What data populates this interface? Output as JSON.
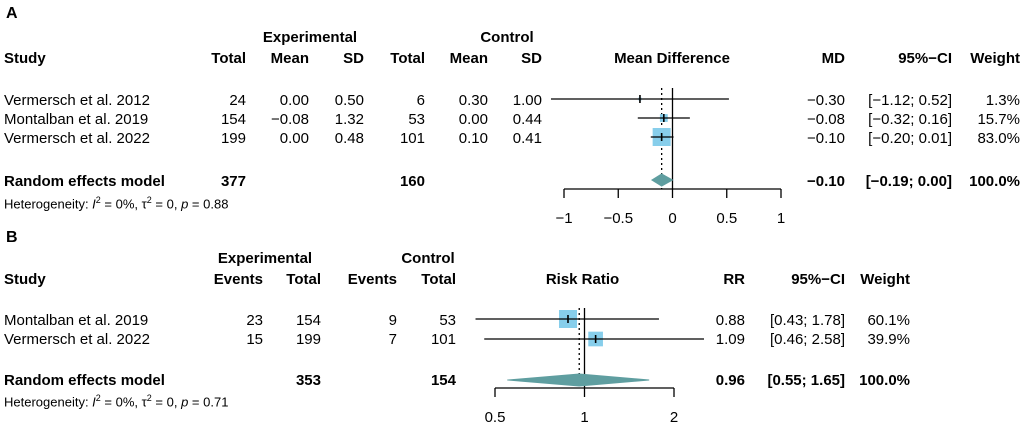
{
  "chart_data": [
    {
      "type": "forest",
      "panel_label": "A",
      "measure": "Mean Difference",
      "columns": {
        "study": "Study",
        "exp_group": "Experimental",
        "ctrl_group": "Control",
        "total": "Total",
        "mean": "Mean",
        "sd": "SD",
        "md": "MD",
        "ci": "95%−CI",
        "weight": "Weight"
      },
      "studies": [
        {
          "name": "Vermersch et al. 2012",
          "exp_total": "24",
          "exp_mean": "0.00",
          "exp_sd": "0.50",
          "ctrl_total": "6",
          "ctrl_mean": "0.30",
          "ctrl_sd": "1.00",
          "effect_text": "−0.30",
          "ci_text": "[−1.12; 0.52]",
          "weight_text": "1.3%",
          "effect": -0.3,
          "lower": -1.12,
          "upper": 0.52,
          "weight": 1.3
        },
        {
          "name": "Montalban et al. 2019",
          "exp_total": "154",
          "exp_mean": "−0.08",
          "exp_sd": "1.32",
          "ctrl_total": "53",
          "ctrl_mean": "0.00",
          "ctrl_sd": "0.44",
          "effect_text": "−0.08",
          "ci_text": "[−0.32; 0.16]",
          "weight_text": "15.7%",
          "effect": -0.08,
          "lower": -0.32,
          "upper": 0.16,
          "weight": 15.7
        },
        {
          "name": "Vermersch et al. 2022",
          "exp_total": "199",
          "exp_mean": "0.00",
          "exp_sd": "0.48",
          "ctrl_total": "101",
          "ctrl_mean": "0.10",
          "ctrl_sd": "0.41",
          "effect_text": "−0.10",
          "ci_text": "[−0.20; 0.01]",
          "weight_text": "83.0%",
          "effect": -0.1,
          "lower": -0.2,
          "upper": 0.01,
          "weight": 83.0
        }
      ],
      "pooled": {
        "label": "Random effects model",
        "exp_total": "377",
        "ctrl_total": "160",
        "effect_text": "−0.10",
        "ci_text": "[−0.19; 0.00]",
        "weight_text": "100.0%",
        "effect": -0.1,
        "lower": -0.19,
        "upper": 0.0
      },
      "heterogeneity": {
        "label": "Heterogeneity: ",
        "i2": "I",
        "i2_sup": "2",
        "i2_val": " = 0%, ",
        "tau": "τ",
        "tau_sup": "2",
        "tau_val": " = 0, ",
        "p": "p",
        "p_val": " = 0.88"
      },
      "axis": {
        "scale": "linear",
        "min": -1,
        "max": 1,
        "null_value": 0,
        "ticks": [
          -1,
          -0.5,
          0,
          0.5,
          1
        ],
        "tick_labels": [
          "−1",
          "−0.5",
          "0",
          "0.5",
          "1"
        ]
      }
    },
    {
      "type": "forest",
      "panel_label": "B",
      "measure": "Risk Ratio",
      "columns": {
        "study": "Study",
        "exp_group": "Experimental",
        "ctrl_group": "Control",
        "events": "Events",
        "total": "Total",
        "rr": "RR",
        "ci": "95%−CI",
        "weight": "Weight"
      },
      "studies": [
        {
          "name": "Montalban et al. 2019",
          "exp_events": "23",
          "exp_total": "154",
          "ctrl_events": "9",
          "ctrl_total": "53",
          "effect_text": "0.88",
          "ci_text": "[0.43; 1.78]",
          "weight_text": "60.1%",
          "effect": 0.88,
          "lower": 0.43,
          "upper": 1.78,
          "weight": 60.1
        },
        {
          "name": "Vermersch et al. 2022",
          "exp_events": "15",
          "exp_total": "199",
          "ctrl_events": "7",
          "ctrl_total": "101",
          "effect_text": "1.09",
          "ci_text": "[0.46; 2.58]",
          "weight_text": "39.9%",
          "effect": 1.09,
          "lower": 0.46,
          "upper": 2.58,
          "weight": 39.9
        }
      ],
      "pooled": {
        "label": "Random effects model",
        "exp_total": "353",
        "ctrl_total": "154",
        "effect_text": "0.96",
        "ci_text": "[0.55; 1.65]",
        "weight_text": "100.0%",
        "effect": 0.96,
        "lower": 0.55,
        "upper": 1.65
      },
      "heterogeneity": {
        "label": "Heterogeneity: ",
        "i2": "I",
        "i2_sup": "2",
        "i2_val": " = 0%, ",
        "tau": "τ",
        "tau_sup": "2",
        "tau_val": " = 0, ",
        "p": "p",
        "p_val": " = 0.71"
      },
      "axis": {
        "scale": "log",
        "min": 0.5,
        "max": 2,
        "null_value": 1,
        "ticks": [
          0.5,
          1,
          2
        ],
        "tick_labels": [
          "0.5",
          "1",
          "2"
        ]
      }
    }
  ],
  "colors": {
    "square": "#87CEEB",
    "diamond": "#5F9EA0",
    "line": "#000000"
  }
}
